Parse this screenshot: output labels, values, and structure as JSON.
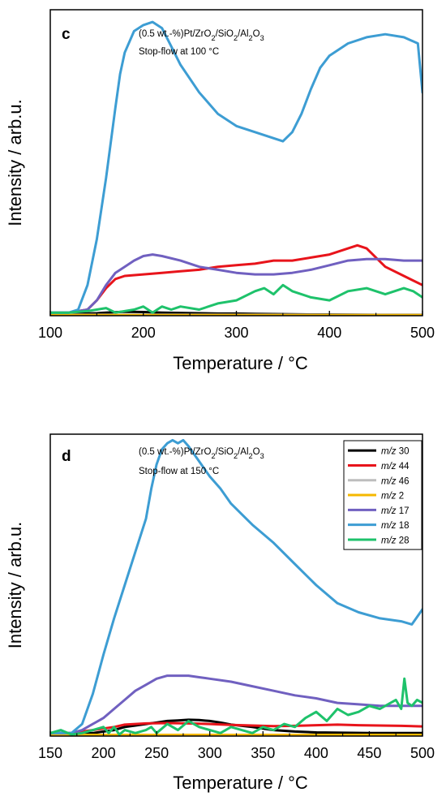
{
  "chart_data": [
    {
      "type": "line",
      "panel_label": "c",
      "annotation_line1": "(0.5 wt.-%)Pt/ZrO₂/SiO₂/Al₂O₃",
      "annotation_line2": "Stop-flow at 100 °C",
      "xlabel": "Temperature / °C",
      "ylabel": "Intensity / arb.u.",
      "xlim": [
        100,
        500
      ],
      "ylim": [
        0,
        100
      ],
      "xticks": [
        100,
        200,
        300,
        400,
        500
      ],
      "yticks_shown": false,
      "legend": false,
      "series": [
        {
          "name": "m/z 30",
          "color": "#000000",
          "x": [
            100,
            120,
            150,
            160,
            180,
            200,
            220,
            240,
            260,
            280,
            300,
            320,
            350,
            380,
            400,
            450,
            500
          ],
          "y": [
            0.6,
            0.6,
            0.8,
            1,
            1.3,
            1.2,
            1,
            0.9,
            0.8,
            0.7,
            0.7,
            0.6,
            0.5,
            0.4,
            0.4,
            0.3,
            0.3
          ]
        },
        {
          "name": "m/z 44",
          "color": "#e8141b",
          "x": [
            100,
            120,
            140,
            150,
            160,
            170,
            180,
            200,
            220,
            240,
            260,
            280,
            300,
            320,
            340,
            360,
            380,
            400,
            420,
            430,
            440,
            460,
            480,
            500
          ],
          "y": [
            1,
            1,
            2,
            5,
            9,
            12,
            13,
            13.5,
            14,
            14.5,
            15,
            16,
            16.5,
            17,
            18,
            18,
            19,
            20,
            22,
            23,
            22,
            16,
            13,
            10
          ]
        },
        {
          "name": "m/z 46",
          "color": "#bdbdbd",
          "x": [
            100,
            500
          ],
          "y": [
            0.3,
            0.3
          ]
        },
        {
          "name": "m/z 2",
          "color": "#f5b800",
          "x": [
            100,
            500
          ],
          "y": [
            0.2,
            0.2
          ]
        },
        {
          "name": "m/z 17",
          "color": "#7060c0",
          "x": [
            100,
            120,
            140,
            150,
            160,
            170,
            180,
            190,
            200,
            210,
            220,
            240,
            260,
            280,
            300,
            320,
            340,
            360,
            380,
            400,
            420,
            440,
            460,
            480,
            500
          ],
          "y": [
            1,
            1,
            2,
            5,
            10,
            14,
            16,
            18,
            19.5,
            20,
            19.5,
            18,
            16,
            15,
            14,
            13.5,
            13.5,
            14,
            15,
            16.5,
            18,
            18.5,
            18.5,
            18,
            18
          ]
        },
        {
          "name": "m/z 18",
          "color": "#3d9dd3",
          "x": [
            100,
            120,
            130,
            140,
            150,
            160,
            170,
            175,
            180,
            190,
            200,
            210,
            220,
            230,
            240,
            260,
            280,
            300,
            320,
            340,
            350,
            360,
            370,
            380,
            390,
            400,
            420,
            440,
            460,
            480,
            495,
            500
          ],
          "y": [
            1,
            1,
            2,
            10,
            25,
            45,
            68,
            79,
            86,
            93,
            95,
            96,
            94,
            88,
            82,
            73,
            66,
            62,
            60,
            58,
            57,
            60,
            66,
            74,
            81,
            85,
            89,
            91,
            92,
            91,
            89,
            73
          ]
        },
        {
          "name": "m/z 28",
          "color": "#1ec26b",
          "x": [
            100,
            120,
            140,
            150,
            160,
            170,
            180,
            190,
            200,
            210,
            220,
            230,
            240,
            260,
            280,
            300,
            320,
            330,
            340,
            350,
            360,
            380,
            400,
            420,
            440,
            460,
            480,
            490,
            500
          ],
          "y": [
            1,
            1,
            1.5,
            2,
            2.5,
            1,
            1.5,
            2,
            3,
            1,
            3,
            2,
            3,
            2,
            4,
            5,
            8,
            9,
            7,
            10,
            8,
            6,
            5,
            8,
            9,
            7,
            9,
            8,
            6
          ]
        }
      ]
    },
    {
      "type": "line",
      "panel_label": "d",
      "annotation_line1": "(0.5 wt.-%)Pt/ZrO₂/SiO₂/Al₂O₃",
      "annotation_line2": "Stop-flow at 150 °C",
      "xlabel": "Temperature / °C",
      "ylabel": "Intensity / arb.u.",
      "xlim": [
        150,
        500
      ],
      "ylim": [
        0,
        100
      ],
      "xticks": [
        150,
        200,
        250,
        300,
        350,
        400,
        450,
        500
      ],
      "yticks_shown": false,
      "legend": true,
      "legend_position": "top-right",
      "legend_entries": [
        {
          "prefix": "m/z",
          "value": "30",
          "color": "#000000"
        },
        {
          "prefix": "m/z",
          "value": "44",
          "color": "#e8141b"
        },
        {
          "prefix": "m/z",
          "value": "46",
          "color": "#bdbdbd"
        },
        {
          "prefix": "m/z",
          "value": "2",
          "color": "#f5b800"
        },
        {
          "prefix": "m/z",
          "value": "17",
          "color": "#7060c0"
        },
        {
          "prefix": "m/z",
          "value": "18",
          "color": "#3d9dd3"
        },
        {
          "prefix": "m/z",
          "value": "28",
          "color": "#1ec26b"
        }
      ],
      "series": [
        {
          "name": "m/z 30",
          "color": "#000000",
          "x": [
            150,
            170,
            190,
            200,
            210,
            220,
            230,
            240,
            250,
            260,
            270,
            280,
            290,
            300,
            310,
            320,
            340,
            360,
            380,
            400,
            450,
            500
          ],
          "y": [
            0.6,
            0.6,
            1,
            1.5,
            2,
            3,
            3.5,
            4,
            4.5,
            5,
            5.2,
            5.4,
            5.3,
            5,
            4.5,
            3.8,
            3,
            2,
            1.5,
            1.2,
            1,
            1
          ]
        },
        {
          "name": "m/z 44",
          "color": "#e8141b",
          "x": [
            150,
            170,
            180,
            190,
            200,
            210,
            220,
            240,
            260,
            280,
            300,
            320,
            340,
            360,
            380,
            400,
            420,
            440,
            460,
            480,
            500
          ],
          "y": [
            1,
            1,
            1.5,
            2,
            2.5,
            3,
            3.8,
            4.2,
            4.3,
            4.2,
            4,
            3.7,
            3.5,
            3.3,
            3.4,
            3.6,
            3.8,
            3.6,
            3.5,
            3.4,
            3.2
          ]
        },
        {
          "name": "m/z 46",
          "color": "#bdbdbd",
          "x": [
            150,
            500
          ],
          "y": [
            0.3,
            0.3
          ]
        },
        {
          "name": "m/z 2",
          "color": "#f5b800",
          "x": [
            150,
            500
          ],
          "y": [
            0.4,
            0.4
          ]
        },
        {
          "name": "m/z 17",
          "color": "#7060c0",
          "x": [
            150,
            170,
            180,
            190,
            200,
            210,
            220,
            230,
            240,
            250,
            260,
            270,
            280,
            290,
            300,
            320,
            340,
            360,
            380,
            400,
            420,
            440,
            460,
            480,
            500
          ],
          "y": [
            1,
            1,
            2,
            4,
            6,
            9,
            12,
            15,
            17,
            19,
            20,
            20,
            20,
            19.5,
            19,
            18,
            16.5,
            15,
            13.5,
            12.5,
            11,
            10.5,
            10,
            10,
            10
          ]
        },
        {
          "name": "m/z 18",
          "color": "#3d9dd3",
          "x": [
            150,
            170,
            180,
            190,
            200,
            210,
            220,
            230,
            240,
            245,
            250,
            255,
            260,
            265,
            270,
            275,
            280,
            290,
            300,
            310,
            320,
            340,
            360,
            380,
            400,
            420,
            440,
            460,
            480,
            490,
            500
          ],
          "y": [
            1,
            1,
            4,
            14,
            27,
            39,
            50,
            61,
            72,
            82,
            90,
            95,
            97,
            98,
            97,
            98,
            96,
            91,
            86,
            82,
            77,
            70,
            64,
            57,
            50,
            44,
            41,
            39,
            38,
            37,
            42
          ]
        },
        {
          "name": "m/z 28",
          "color": "#1ec26b",
          "x": [
            150,
            160,
            170,
            180,
            190,
            200,
            205,
            210,
            215,
            220,
            230,
            240,
            245,
            250,
            260,
            270,
            280,
            290,
            300,
            310,
            320,
            330,
            340,
            350,
            360,
            370,
            380,
            390,
            400,
            410,
            420,
            430,
            440,
            450,
            460,
            470,
            475,
            480,
            483,
            486,
            490,
            495,
            500
          ],
          "y": [
            1,
            2,
            0.5,
            1,
            2,
            3,
            1,
            3,
            0.5,
            2,
            1,
            2,
            3,
            1,
            4,
            2,
            5,
            3,
            2,
            1,
            3,
            2,
            1,
            3,
            2,
            4,
            3,
            6,
            8,
            5,
            9,
            7,
            8,
            10,
            9,
            11,
            12,
            9,
            19,
            11,
            10,
            12,
            11
          ]
        }
      ]
    }
  ]
}
